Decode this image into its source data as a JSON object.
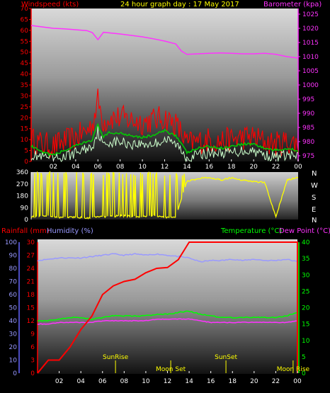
{
  "colors": {
    "wind_gust": "#ff0000",
    "wind_avg": "#00cc00",
    "wind_speed": "#ccffcc",
    "barometer": "#ff33ff",
    "direction": "#ffff00",
    "rainfall": "#ff0000",
    "humidity": "#9999ff",
    "temperature": "#00ff00",
    "dew_point": "#ff33ff",
    "astro_marker": "#ffff00"
  },
  "header": {
    "left": "Windspeed (kts)",
    "center": "24 hour graph day : 17 May 2017",
    "right": "Barometer (kpa)"
  },
  "bottom_header": {
    "rainfall": "Rainfall (mm)",
    "humidity": "Humidity (%)",
    "temperature": "Temperature (°C)",
    "dew_point": "Dew Point (°C)"
  },
  "compass": [
    "N",
    "W",
    "S",
    "E",
    "N"
  ],
  "astro": {
    "sunrise": "SunRise",
    "sunset": "SunSet",
    "moonset": "Moon Set",
    "moonrise": "Moon Rise"
  },
  "chart_data": [
    {
      "type": "line",
      "name": "wind",
      "x_ticks": [
        "02",
        "04",
        "06",
        "08",
        "10",
        "12",
        "14",
        "16",
        "18",
        "20",
        "22",
        "00"
      ],
      "left_axis": {
        "label": "Windspeed (kts)",
        "ticks": [
          0,
          5,
          10,
          15,
          20,
          25,
          30,
          35,
          40,
          45,
          50,
          55,
          60,
          65,
          70
        ],
        "ylim": [
          0,
          70
        ]
      },
      "right_axis": {
        "label": "Barometer (kpa)",
        "ticks": [
          975,
          980,
          985,
          990,
          995,
          1000,
          1005,
          1010,
          1015,
          1020,
          1025
        ],
        "ylim": [
          973,
          1027
        ]
      },
      "hours": [
        0,
        1,
        2,
        3,
        4,
        5,
        5.5,
        6,
        6.5,
        7,
        8,
        9,
        10,
        11,
        12,
        13,
        13.5,
        14,
        15,
        16,
        17,
        18,
        19,
        20,
        21,
        22,
        23,
        24
      ],
      "series": [
        {
          "key": "gust",
          "values": [
            10,
            8,
            7,
            9,
            11,
            14,
            17,
            28,
            18,
            20,
            20,
            19,
            18,
            19,
            20,
            17,
            13,
            8,
            9,
            10,
            9,
            10,
            11,
            11,
            9,
            8,
            9,
            8
          ]
        },
        {
          "key": "average",
          "values": [
            7,
            4,
            3,
            5,
            7,
            9,
            10,
            17,
            11,
            13,
            13,
            12,
            11,
            12,
            14,
            12,
            8,
            4,
            6,
            7,
            6,
            7,
            8,
            8,
            6,
            5,
            6,
            5
          ]
        },
        {
          "key": "speed",
          "values": [
            3,
            2,
            1,
            2,
            4,
            6,
            7,
            14,
            7,
            9,
            9,
            8,
            8,
            8,
            10,
            8,
            5,
            2,
            3,
            4,
            4,
            4,
            5,
            5,
            3,
            2,
            3,
            2
          ]
        },
        {
          "key": "barometer",
          "values": [
            1021,
            1020.5,
            1020,
            1019.8,
            1019.5,
            1019.2,
            1018.5,
            1016,
            1018.6,
            1018.4,
            1018,
            1017.5,
            1017,
            1016.3,
            1015.5,
            1014.5,
            1012,
            1010.8,
            1011,
            1011.2,
            1011.3,
            1011.2,
            1011,
            1011,
            1011.2,
            1010.8,
            1010,
            1009.5
          ]
        }
      ]
    },
    {
      "type": "line",
      "name": "wind_direction",
      "x_ticks": [
        "02",
        "04",
        "06",
        "08",
        "10",
        "12",
        "14",
        "16",
        "18",
        "20",
        "22",
        "00"
      ],
      "left_axis": {
        "ticks": [
          0,
          90,
          180,
          270,
          360
        ],
        "ylim": [
          0,
          360
        ]
      },
      "hours": [
        0,
        1,
        2,
        3,
        4,
        5,
        6,
        7,
        8,
        9,
        10,
        11,
        12,
        13,
        14,
        15,
        16,
        17,
        18,
        19,
        20,
        21,
        22,
        23,
        24
      ],
      "series": [
        {
          "key": "direction",
          "values": [
            20,
            30,
            20,
            15,
            20,
            10,
            25,
            20,
            30,
            25,
            20,
            30,
            15,
            20,
            290,
            310,
            320,
            300,
            315,
            300,
            290,
            280,
            20,
            300,
            320
          ]
        }
      ]
    },
    {
      "type": "line",
      "name": "rain_humidity_temperature",
      "x_ticks": [
        "02",
        "04",
        "06",
        "08",
        "10",
        "12",
        "14",
        "16",
        "18",
        "20",
        "22",
        "00"
      ],
      "left_axis": {
        "label": "Rainfall (mm)",
        "ticks": [
          0,
          3,
          6,
          9,
          12,
          15,
          18,
          21,
          24,
          27,
          30
        ],
        "ylim": [
          0,
          30
        ]
      },
      "humidity_axis": {
        "label": "Humidity (%)",
        "ticks": [
          0,
          10,
          20,
          30,
          40,
          50,
          60,
          70,
          80,
          90,
          100
        ],
        "ylim": [
          0,
          100
        ]
      },
      "right_axis": {
        "label": "Temperature (°C)",
        "ticks": [
          0,
          5,
          10,
          15,
          20,
          25,
          30,
          35,
          40
        ],
        "ylim": [
          0,
          40
        ]
      },
      "hours": [
        0,
        1,
        2,
        3,
        4,
        5,
        6,
        7,
        8,
        9,
        10,
        11,
        12,
        13,
        14,
        15,
        16,
        17,
        18,
        19,
        20,
        21,
        22,
        23,
        24
      ],
      "series": [
        {
          "key": "rainfall",
          "values": [
            0,
            3,
            3,
            6,
            10,
            13,
            18,
            20,
            21,
            21.5,
            23,
            24,
            24.2,
            26,
            30,
            30,
            30,
            30,
            30,
            30,
            30,
            30,
            30,
            30,
            30
          ]
        },
        {
          "key": "humidity",
          "values": [
            86,
            87,
            88,
            88,
            88,
            89,
            90,
            91,
            90,
            91,
            90,
            91,
            90,
            89,
            88,
            85,
            86,
            86,
            87,
            86,
            87,
            86,
            86,
            87,
            85
          ]
        },
        {
          "key": "temperature",
          "values": [
            16,
            16,
            16.5,
            17,
            17,
            16.5,
            17,
            17.5,
            17.5,
            17.5,
            17.5,
            18,
            18,
            18.5,
            19,
            18,
            17.5,
            17,
            17,
            17,
            17,
            17,
            17,
            17.5,
            18.5
          ]
        },
        {
          "key": "dew_point",
          "values": [
            15,
            15,
            15.5,
            15.5,
            15.5,
            15.5,
            16,
            16,
            16,
            16,
            16,
            16.5,
            16.5,
            16.5,
            16.5,
            16,
            15.5,
            15.5,
            15.5,
            15.5,
            15.5,
            15.5,
            15.5,
            15.5,
            16
          ]
        }
      ],
      "events": [
        {
          "key": "sunrise",
          "hour": 7.2
        },
        {
          "key": "moonset",
          "hour": 12.3
        },
        {
          "key": "sunset",
          "hour": 17.4
        },
        {
          "key": "moonrise",
          "hour": 23.6
        }
      ]
    }
  ]
}
